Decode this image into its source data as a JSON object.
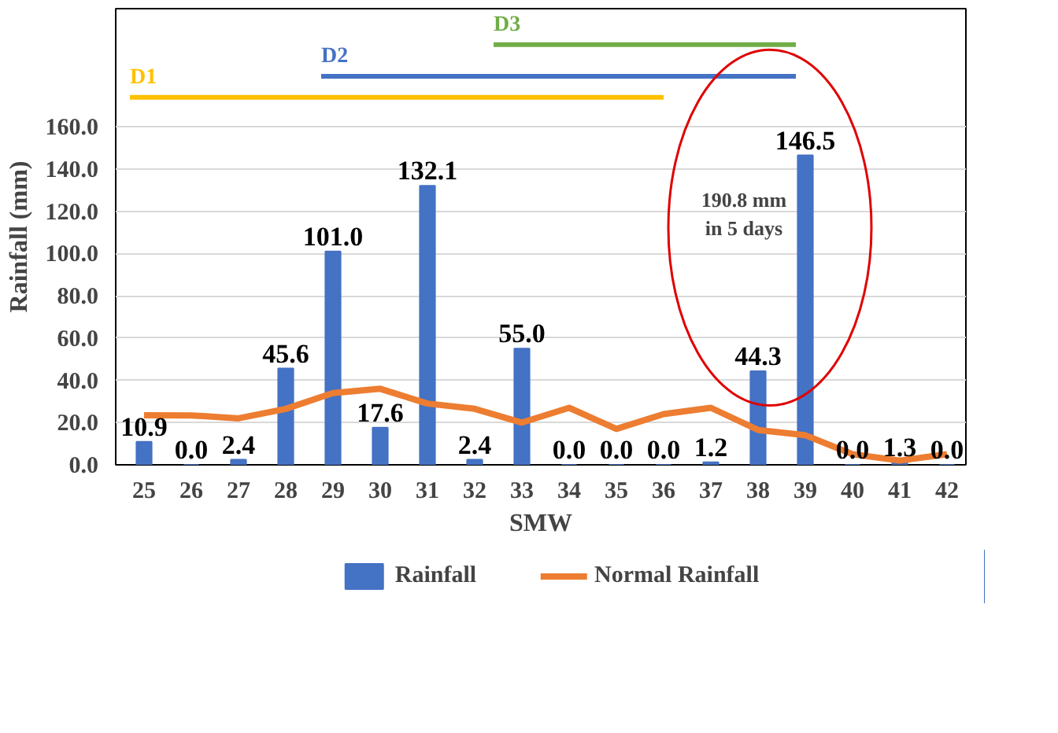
{
  "chart_data": {
    "type": "bar",
    "xlabel": "SMW",
    "ylabel": "Rainfall (mm)",
    "x": [
      25,
      26,
      27,
      28,
      29,
      30,
      31,
      32,
      33,
      34,
      35,
      36,
      37,
      38,
      39,
      40,
      41,
      42
    ],
    "xlim": [
      24.4,
      42.4
    ],
    "xticks": [
      25,
      26,
      27,
      28,
      29,
      30,
      31,
      32,
      33,
      34,
      35,
      36,
      37,
      38,
      39,
      40,
      41,
      42
    ],
    "ylim": [
      0,
      216
    ],
    "yticks": [
      {
        "value": 0,
        "label": "0.0"
      },
      {
        "value": 20,
        "label": "20.0"
      },
      {
        "value": 40,
        "label": "40.0"
      },
      {
        "value": 60,
        "label": "60.0"
      },
      {
        "value": 80,
        "label": "80.0"
      },
      {
        "value": 100,
        "label": "100.0"
      },
      {
        "value": 120,
        "label": "120.0"
      },
      {
        "value": 140,
        "label": "140.0"
      },
      {
        "value": 160,
        "label": "160.0"
      }
    ],
    "grid": "y",
    "legend": "bottom",
    "series": [
      {
        "name": "Rainfall",
        "color": "#4472c4",
        "values": [
          10.9,
          0.0,
          2.4,
          45.6,
          101.0,
          17.6,
          132.1,
          2.4,
          55.0,
          0.0,
          0.0,
          0.0,
          1.2,
          44.3,
          146.5,
          0.0,
          1.3,
          0.0
        ],
        "value_labels": [
          "10.9",
          "0.0",
          "2.4",
          "45.6",
          "101.0",
          "17.6",
          "132.1",
          "2.4",
          "55.0",
          "0.0",
          "0.0",
          "0.0",
          "1.2",
          "44.3",
          "146.5",
          "0.0",
          "1.3",
          "0.0"
        ]
      },
      {
        "name": "Normal Rainfall",
        "type": "line",
        "color": "#ed7d31",
        "values": [
          23.5,
          23.4,
          22,
          26.5,
          34,
          36,
          29,
          26.5,
          20,
          27,
          17,
          24,
          27,
          16.5,
          14,
          5,
          2,
          5
        ]
      },
      {
        "name": "D1",
        "type": "line",
        "color": "#ffc000",
        "x": [
          24.7,
          36.0
        ],
        "values": [
          174,
          174
        ]
      },
      {
        "name": "D2",
        "type": "line",
        "color": "#4472c4",
        "x": [
          28.75,
          38.8
        ],
        "values": [
          184,
          184
        ]
      },
      {
        "name": "D3",
        "type": "line",
        "color": "#70ad47",
        "x": [
          32.4,
          38.8
        ],
        "values": [
          199,
          199
        ]
      }
    ],
    "annotations": [
      "190.8 mm in 5 days"
    ]
  }
}
